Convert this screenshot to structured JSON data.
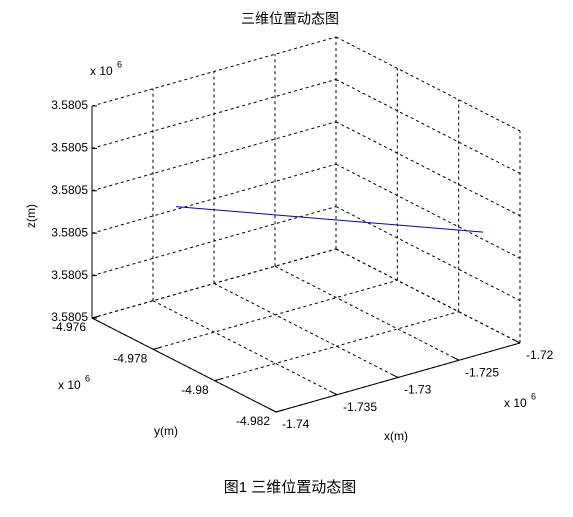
{
  "chart_data": {
    "type": "line3d",
    "title": "三维位置动态图",
    "xlabel": "x(m)",
    "ylabel": "y(m)",
    "zlabel": "z(m)",
    "x_scale": {
      "text": "x 10",
      "exponent": "6"
    },
    "y_scale": {
      "text": "x 10",
      "exponent": "6"
    },
    "z_scale": {
      "text": "x 10",
      "exponent": "6"
    },
    "xlim": [
      -1.74,
      -1.72
    ],
    "xticks": [
      -1.74,
      -1.735,
      -1.73,
      -1.725,
      -1.72
    ],
    "ylim": [
      -4.982,
      -4.976
    ],
    "yticks": [
      -4.976,
      -4.978,
      -4.98,
      -4.982
    ],
    "zlim": [
      3.58047,
      3.58052
    ],
    "zticks": [
      {
        "value": 3.58047,
        "label": "3.5805"
      },
      {
        "value": 3.58048,
        "label": "3.5805"
      },
      {
        "value": 3.58049,
        "label": "3.5805"
      },
      {
        "value": 3.5805,
        "label": "3.5805"
      },
      {
        "value": 3.58051,
        "label": "3.5805"
      },
      {
        "value": 3.58052,
        "label": "3.5805"
      }
    ],
    "grid": true,
    "series": [
      {
        "color": "#0000cc",
        "x": [
          -1.73764,
          -1.721
        ],
        "y": [
          -4.9778,
          -4.9812
        ],
        "z": [
          3.580501,
          3.580494
        ]
      }
    ]
  },
  "caption": "图1  三维位置动态图"
}
